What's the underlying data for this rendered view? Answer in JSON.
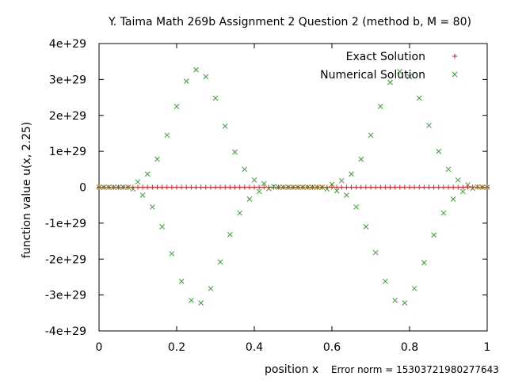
{
  "chart_data": {
    "type": "scatter",
    "title": "Y. Taima Math 269b Assignment 2 Question 2 (method b, M = 80)",
    "xlabel": "position x",
    "ylabel": "function value u(x, 2.25)",
    "annotation": "Error norm = 15303721980277643",
    "xlim": [
      0,
      1
    ],
    "ylim": [
      -4e+29,
      4e+29
    ],
    "x_ticks": [
      0,
      0.2,
      0.4,
      0.6,
      0.8,
      1
    ],
    "x_tick_labels": [
      "0",
      "0.2",
      "0.4",
      "0.6",
      "0.8",
      "1"
    ],
    "y_ticks": [
      -4e+29,
      -3e+29,
      -2e+29,
      -1e+29,
      0,
      1e+29,
      2e+29,
      3e+29,
      4e+29
    ],
    "y_tick_labels": [
      "-4e+29",
      "-3e+29",
      "-2e+29",
      "-1e+29",
      "0",
      "1e+29",
      "2e+29",
      "3e+29",
      "4e+29"
    ],
    "grid": false,
    "legend_position": "top-right",
    "series": [
      {
        "name": "Exact Solution",
        "marker": "plus",
        "color": "#e31a1c",
        "x": [
          0.0,
          0.0125,
          0.025,
          0.0375,
          0.05,
          0.0625,
          0.075,
          0.0875,
          0.1,
          0.1125,
          0.125,
          0.1375,
          0.15,
          0.1625,
          0.175,
          0.1875,
          0.2,
          0.2125,
          0.225,
          0.2375,
          0.25,
          0.2625,
          0.275,
          0.2875,
          0.3,
          0.3125,
          0.325,
          0.3375,
          0.35,
          0.3625,
          0.375,
          0.3875,
          0.4,
          0.4125,
          0.425,
          0.4375,
          0.45,
          0.4625,
          0.475,
          0.4875,
          0.5,
          0.5125,
          0.525,
          0.5375,
          0.55,
          0.5625,
          0.575,
          0.5875,
          0.6,
          0.6125,
          0.625,
          0.6375,
          0.65,
          0.6625,
          0.675,
          0.6875,
          0.7,
          0.7125,
          0.725,
          0.7375,
          0.75,
          0.7625,
          0.775,
          0.7875,
          0.8,
          0.8125,
          0.825,
          0.8375,
          0.85,
          0.8625,
          0.875,
          0.8875,
          0.9,
          0.9125,
          0.925,
          0.9375,
          0.95,
          0.9625,
          0.975,
          0.9875,
          1.0
        ],
        "y": [
          0,
          0,
          0,
          0,
          0,
          0,
          0,
          0,
          0,
          0,
          0,
          0,
          0,
          0,
          0,
          0,
          0,
          0,
          0,
          0,
          0,
          0,
          0,
          0,
          0,
          0,
          0,
          0,
          0,
          0,
          0,
          0,
          0,
          0,
          0,
          0,
          0,
          0,
          0,
          0,
          0,
          0,
          0,
          0,
          0,
          0,
          0,
          0,
          0,
          0,
          0,
          0,
          0,
          0,
          0,
          0,
          0,
          0,
          0,
          0,
          0,
          0,
          0,
          0,
          0,
          0,
          0,
          0,
          0,
          0,
          0,
          0,
          0,
          0,
          0,
          0,
          0,
          0,
          0,
          0,
          0
        ]
      },
      {
        "name": "Numerical Solution",
        "marker": "cross",
        "color": "#33a02c",
        "x": [
          0.0,
          0.0125,
          0.025,
          0.0375,
          0.05,
          0.0625,
          0.075,
          0.0875,
          0.1,
          0.1125,
          0.125,
          0.1375,
          0.15,
          0.1625,
          0.175,
          0.1875,
          0.2,
          0.2125,
          0.225,
          0.2375,
          0.25,
          0.2625,
          0.275,
          0.2875,
          0.3,
          0.3125,
          0.325,
          0.3375,
          0.35,
          0.3625,
          0.375,
          0.3875,
          0.4,
          0.4125,
          0.425,
          0.4375,
          0.45,
          0.4625,
          0.475,
          0.4875,
          0.5,
          0.5125,
          0.525,
          0.5375,
          0.55,
          0.5625,
          0.575,
          0.5875,
          0.6,
          0.6125,
          0.625,
          0.6375,
          0.65,
          0.6625,
          0.675,
          0.6875,
          0.7,
          0.7125,
          0.725,
          0.7375,
          0.75,
          0.7625,
          0.775,
          0.7875,
          0.8,
          0.8125,
          0.825,
          0.8375,
          0.85,
          0.8625,
          0.875,
          0.8875,
          0.9,
          0.9125,
          0.925,
          0.9375,
          0.95,
          0.9625,
          0.975,
          0.9875,
          1.0
        ],
        "y": [
          0,
          0,
          0,
          0,
          0,
          0,
          0,
          -5e+27,
          1.5e+28,
          -2.2e+28,
          3.7e+28,
          -5.5e+28,
          7.8e+28,
          -1.1e+29,
          1.45e+29,
          -1.85e+29,
          2.25e+29,
          -2.62e+29,
          2.95e+29,
          -3.15e+29,
          3.27e+29,
          -3.22e+29,
          3.08e+29,
          -2.82e+29,
          2.48e+29,
          -2.08e+29,
          1.7e+29,
          -1.32e+29,
          9.8e+28,
          -7.2e+28,
          5e+28,
          -3.3e+28,
          2e+28,
          -1.2e+28,
          1e+28,
          -4e+27,
          2e+27,
          0,
          0,
          0,
          0,
          0,
          0,
          0,
          0,
          0,
          0,
          -5e+27,
          8e+27,
          -1e+28,
          1.8e+28,
          -2.2e+28,
          3.7e+28,
          -5.5e+28,
          7.8e+28,
          -1.1e+29,
          1.45e+29,
          -1.82e+29,
          2.25e+29,
          -2.62e+29,
          2.92e+29,
          -3.15e+29,
          3.22e+29,
          -3.22e+29,
          3.08e+29,
          -2.82e+29,
          2.48e+29,
          -2.1e+29,
          1.72e+29,
          -1.33e+29,
          1e+29,
          -7.2e+28,
          5e+28,
          -3.3e+28,
          2e+28,
          -1.2e+28,
          7e+27,
          -3e+27,
          1e+27,
          0,
          0
        ]
      }
    ]
  }
}
